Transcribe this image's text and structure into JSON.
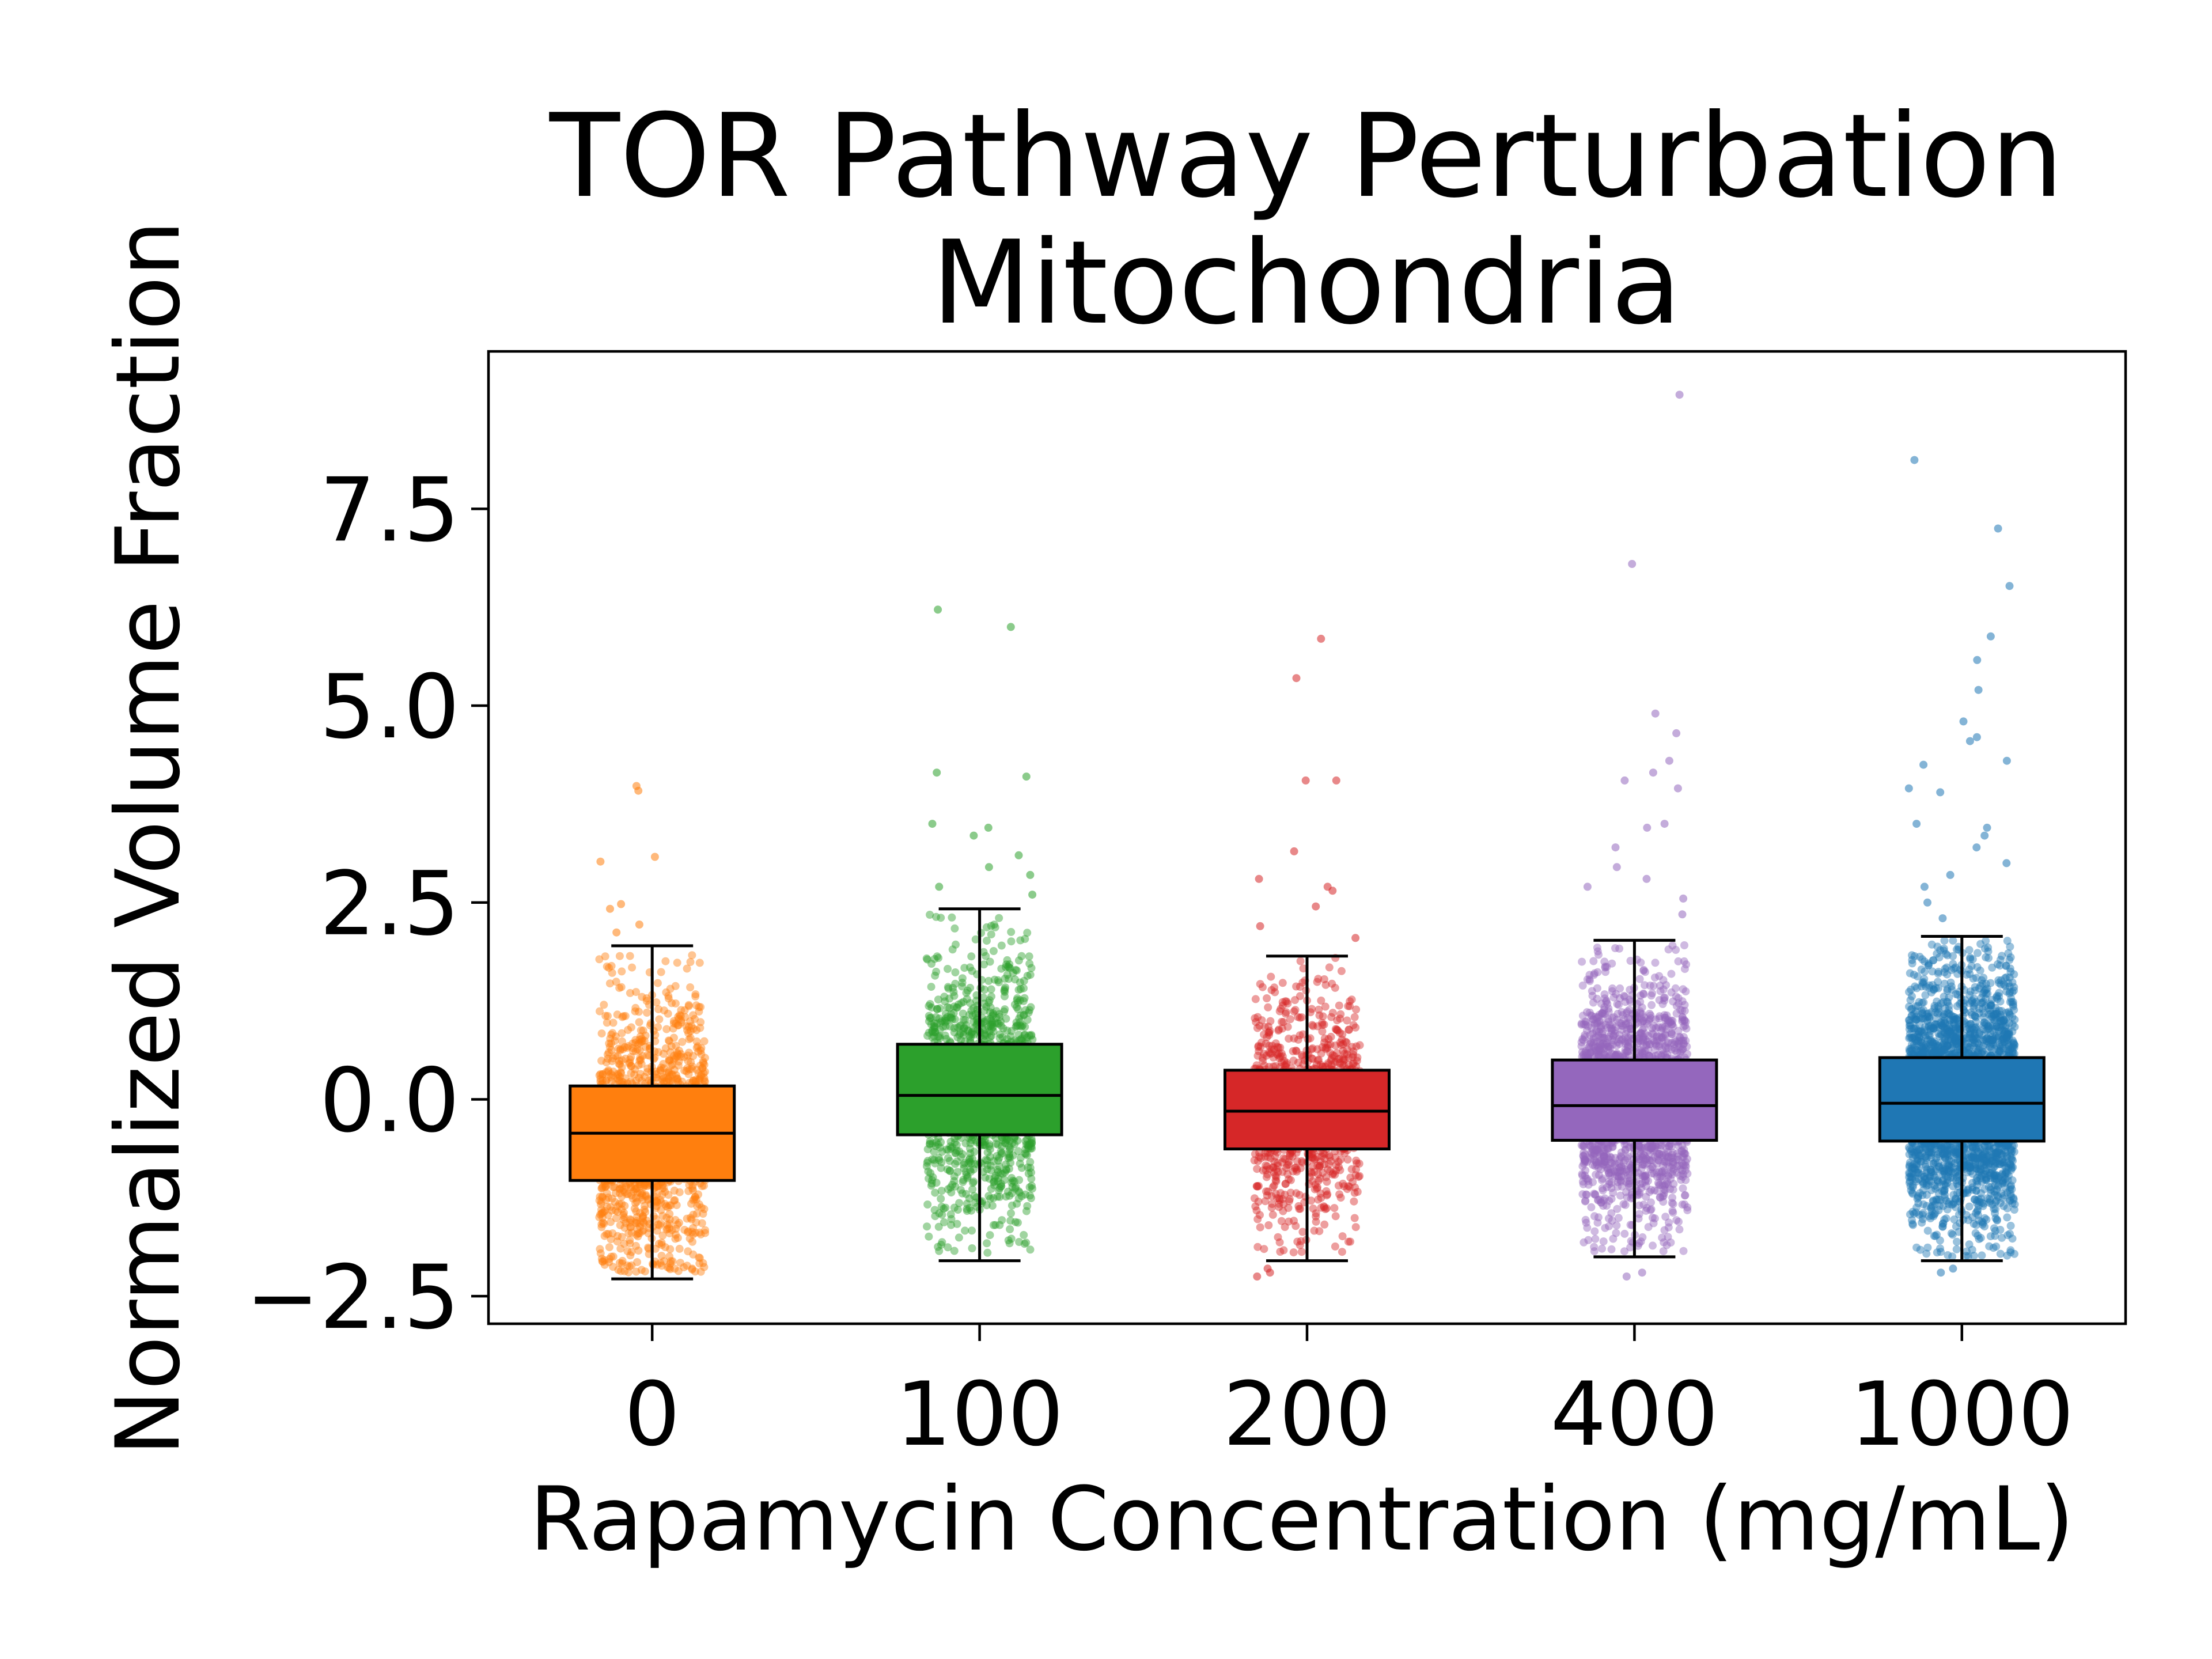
{
  "chart_data": {
    "type": "boxplot",
    "title": "TOR Pathway Perturbation",
    "subtitle": "Mitochondria",
    "xlabel": "Rapamycin Concentration (mg/mL)",
    "ylabel": "Normalized Volume Fraction",
    "categories": [
      "0",
      "100",
      "200",
      "400",
      "1000"
    ],
    "yticks": [
      -2.5,
      0.0,
      2.5,
      5.0,
      7.5
    ],
    "ytick_labels": [
      "−2.5",
      "0.0",
      "2.5",
      "5.0",
      "7.5"
    ],
    "ylim": [
      -2.85,
      9.5
    ],
    "grid": false,
    "legend": "none",
    "series": [
      {
        "category": "0",
        "color": "#ff7f0e",
        "q1": -1.03,
        "median": -0.43,
        "q3": 0.17,
        "whisker_low": -2.28,
        "whisker_high": 1.95,
        "outliers": [
          3.92,
          3.98,
          3.08,
          3.02,
          2.48,
          2.42,
          2.22,
          2.12
        ],
        "point_count": 1400,
        "point_spread": [
          -2.2,
          1.85
        ]
      },
      {
        "category": "100",
        "color": "#2ca02c",
        "q1": -0.45,
        "median": 0.05,
        "q3": 0.7,
        "whisker_low": -2.05,
        "whisker_high": 2.42,
        "outliers": [
          6.22,
          6.0,
          4.15,
          4.1,
          3.5,
          3.45,
          3.35,
          3.1,
          2.95,
          2.85,
          2.7,
          2.6
        ],
        "point_count": 1300,
        "point_spread": [
          -1.95,
          2.35
        ]
      },
      {
        "category": "200",
        "color": "#d62728",
        "q1": -0.63,
        "median": -0.15,
        "q3": 0.37,
        "whisker_low": -2.05,
        "whisker_high": 1.82,
        "outliers": [
          5.85,
          5.35,
          4.05,
          4.05,
          3.15,
          2.8,
          2.7,
          2.65,
          2.45,
          2.2,
          2.05,
          -2.15,
          -2.25,
          -2.2
        ],
        "point_count": 1000,
        "point_spread": [
          -2.0,
          1.8
        ]
      },
      {
        "category": "400",
        "color": "#9467bd",
        "q1": -0.52,
        "median": -0.08,
        "q3": 0.5,
        "whisker_low": -2.0,
        "whisker_high": 2.02,
        "outliers": [
          8.95,
          6.8,
          4.9,
          4.65,
          4.3,
          4.15,
          4.05,
          3.95,
          3.5,
          3.45,
          3.2,
          2.95,
          2.8,
          2.7,
          2.55,
          2.35,
          -2.2,
          -2.25
        ],
        "point_count": 1900,
        "point_spread": [
          -1.95,
          1.98
        ]
      },
      {
        "category": "1000",
        "color": "#1f77b4",
        "q1": -0.53,
        "median": -0.05,
        "q3": 0.53,
        "whisker_low": -2.05,
        "whisker_high": 2.07,
        "outliers": [
          8.12,
          7.25,
          6.52,
          5.88,
          5.58,
          5.2,
          4.8,
          4.6,
          4.55,
          4.3,
          4.25,
          3.95,
          3.9,
          3.5,
          3.45,
          3.35,
          3.2,
          3.0,
          2.85,
          2.7,
          2.5,
          2.3,
          -2.15,
          -2.2
        ],
        "point_count": 2800,
        "point_spread": [
          -2.0,
          2.02
        ]
      }
    ]
  }
}
